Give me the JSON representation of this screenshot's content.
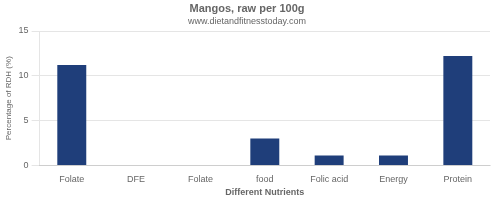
{
  "chart_data": {
    "type": "bar",
    "title": "Mangos, raw per 100g",
    "subtitle": "www.dietandfitnesstoday.com",
    "xlabel": "Different Nutrients",
    "ylabel": "Percentage of RDH (%)",
    "categories": [
      "Folate",
      "DFE",
      "Folate",
      "food",
      "Folic acid",
      "Energy",
      "Protein"
    ],
    "values": [
      11.2,
      0.0,
      0.0,
      3.0,
      1.1,
      1.1,
      12.2
    ],
    "color": "#1f3e7a",
    "ylim": [
      0,
      15
    ],
    "yticks": [
      0,
      5,
      10,
      15
    ],
    "grid": true
  }
}
